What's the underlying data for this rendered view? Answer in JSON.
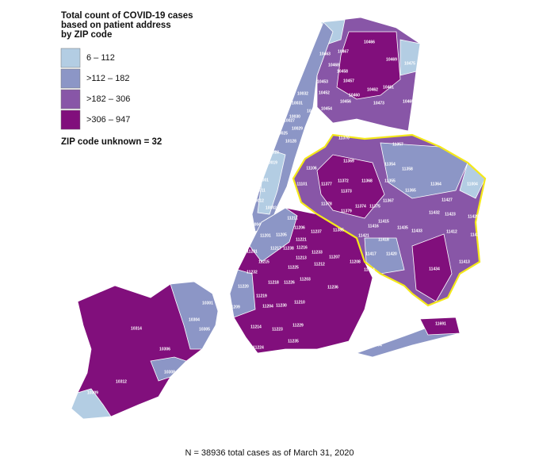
{
  "legend": {
    "title_lines": [
      "Total count of COVID-19 cases",
      "based on patient address",
      "by ZIP code"
    ],
    "items": [
      {
        "label": "6 – 112",
        "color": "#b3cde3"
      },
      {
        "label": ">112 – 182",
        "color": "#8c96c6"
      },
      {
        "label": ">182 – 306",
        "color": "#8856a7"
      },
      {
        "label": ">306 – 947",
        "color": "#810f7c"
      }
    ],
    "unknown": "ZIP code unknown = 32"
  },
  "zip_labels": [
    "10466",
    "10467",
    "10463",
    "10469",
    "10468",
    "10458",
    "10475",
    "10453",
    "10457",
    "10461",
    "10452",
    "10462",
    "10456",
    "10460",
    "10473",
    "10465",
    "10454",
    "10032",
    "10031",
    "10451",
    "10030",
    "10027",
    "10029",
    "10025",
    "10128",
    "10023",
    "10019",
    "10001",
    "10011",
    "10012",
    "10002",
    "10004",
    "11370",
    "11369",
    "11357",
    "11354",
    "11358",
    "11372",
    "11368",
    "11355",
    "11377",
    "11101",
    "11106",
    "11373",
    "11367",
    "11365",
    "11364",
    "11004",
    "11427",
    "11378",
    "11374",
    "11375",
    "11379",
    "11432",
    "11423",
    "11429",
    "11415",
    "11435",
    "11412",
    "11411",
    "11385",
    "11421",
    "11418",
    "11433",
    "11416",
    "11417",
    "11420",
    "11413",
    "11422",
    "11414",
    "11434",
    "11691",
    "11694",
    "11211",
    "11206",
    "11237",
    "11201",
    "11205",
    "11221",
    "11217",
    "11238",
    "11216",
    "11213",
    "11233",
    "11212",
    "11207",
    "11208",
    "11231",
    "11215",
    "11225",
    "11232",
    "11220",
    "11218",
    "11226",
    "11203",
    "11236",
    "11219",
    "11204",
    "11230",
    "11210",
    "11209",
    "11214",
    "11223",
    "11229",
    "11224",
    "11235",
    "10301",
    "10304",
    "10305",
    "10314",
    "10306",
    "10308",
    "10312",
    "10309"
  ],
  "footnote": "N = 38936 total cases as of March 31, 2020"
}
